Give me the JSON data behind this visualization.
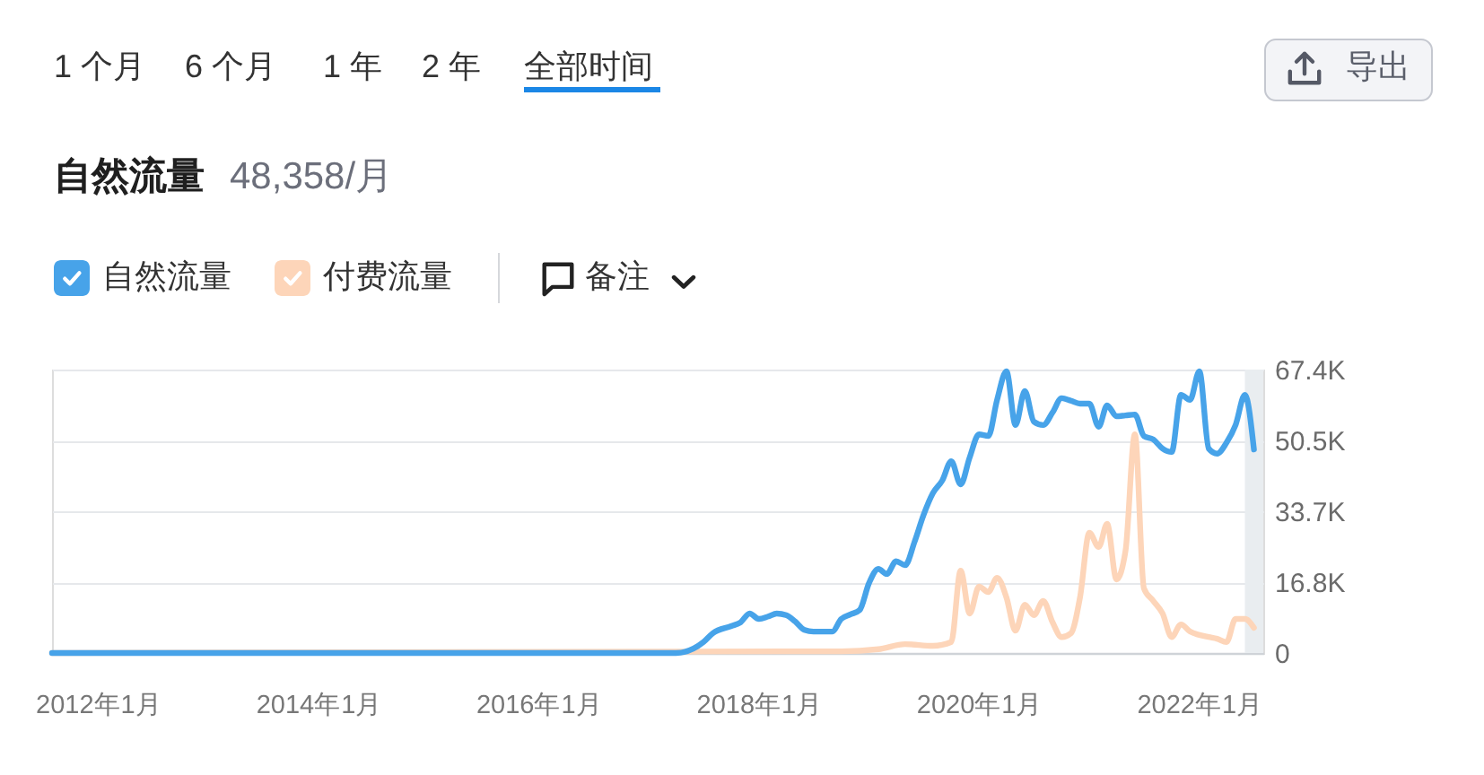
{
  "chart_data": {
    "type": "line",
    "title": "自然流量",
    "subtitle": "48,358/月",
    "annotations": [
      "1 个月",
      "6 个月",
      "1 年",
      "2 年",
      "全部时间",
      "导出",
      "备注"
    ],
    "xlim": [
      "2011-08",
      "2022-08"
    ],
    "xticks": [
      {
        "value": "2012-01",
        "label": "2012年1月"
      },
      {
        "value": "2014-01",
        "label": "2014年1月"
      },
      {
        "value": "2016-01",
        "label": "2016年1月"
      },
      {
        "value": "2018-01",
        "label": "2018年1月"
      },
      {
        "value": "2020-01",
        "label": "2020年1月"
      },
      {
        "value": "2022-01",
        "label": "2022年1月"
      }
    ],
    "ylim": [
      0,
      67400
    ],
    "yticks": [
      0,
      {
        "value": 16850,
        "label": "16.8K"
      },
      {
        "value": 33700,
        "label": "33.7K"
      },
      {
        "value": 50550,
        "label": "50.5K"
      },
      {
        "value": 67400,
        "label": "67.4K"
      }
    ],
    "grid": "y",
    "legend": "top left",
    "bands": [
      {
        "axis": "x",
        "from": "2022-06",
        "to": "2022-08",
        "color": "#e9edf0"
      }
    ],
    "series": [
      {
        "name": "自然流量",
        "color": "#47a3e9",
        "x": [
          "2011-08",
          "2017-04",
          "2017-07",
          "2017-08",
          "2017-10",
          "2017-11",
          "2017-12",
          "2018-01",
          "2018-02",
          "2018-03",
          "2018-04",
          "2018-05",
          "2018-06",
          "2018-07",
          "2018-08",
          "2018-09",
          "2018-10",
          "2018-11",
          "2018-12",
          "2019-01",
          "2019-02",
          "2019-03",
          "2019-04",
          "2019-05",
          "2019-06",
          "2019-07",
          "2019-08",
          "2019-09",
          "2019-10",
          "2019-11",
          "2019-12",
          "2020-01",
          "2020-02",
          "2020-03",
          "2020-04",
          "2020-05",
          "2020-06",
          "2020-07",
          "2020-08",
          "2020-09",
          "2020-10",
          "2020-11",
          "2020-12",
          "2021-01",
          "2021-02",
          "2021-03",
          "2021-04",
          "2021-05",
          "2021-06",
          "2021-07",
          "2021-08",
          "2021-09",
          "2021-10",
          "2021-11",
          "2021-12",
          "2022-01",
          "2022-02",
          "2022-03",
          "2022-04",
          "2022-05",
          "2022-06",
          "2022-07"
        ],
        "values": [
          0,
          0,
          2600,
          4700,
          6400,
          7300,
          9400,
          8100,
          8700,
          9400,
          9000,
          7500,
          5500,
          5100,
          5100,
          5100,
          8100,
          9200,
          10200,
          16600,
          20000,
          18800,
          21800,
          20900,
          26400,
          32800,
          38000,
          41000,
          45600,
          40100,
          46500,
          52000,
          51600,
          60200,
          67000,
          54200,
          62300,
          55000,
          54200,
          57200,
          60600,
          60000,
          59300,
          59300,
          53800,
          58900,
          56300,
          56500,
          56700,
          51600,
          50800,
          48600,
          47800,
          61400,
          60200,
          67000,
          48600,
          47400,
          50000,
          54200,
          61400,
          48400
        ]
      },
      {
        "name": "付费流量",
        "color": "#fdd5b9",
        "x": [
          "2011-08",
          "2018-04",
          "2018-10",
          "2019-02",
          "2019-05",
          "2019-08",
          "2019-10",
          "2019-11",
          "2019-12",
          "2020-01",
          "2020-02",
          "2020-03",
          "2020-04",
          "2020-05",
          "2020-06",
          "2020-07",
          "2020-08",
          "2020-09",
          "2020-10",
          "2020-11",
          "2020-12",
          "2021-01",
          "2021-02",
          "2021-03",
          "2021-04",
          "2021-05",
          "2021-06",
          "2021-07",
          "2021-08",
          "2021-09",
          "2021-10",
          "2021-11",
          "2021-12",
          "2022-01",
          "2022-02",
          "2022-03",
          "2022-04",
          "2022-05",
          "2022-06",
          "2022-07"
        ],
        "values": [
          0,
          400,
          400,
          900,
          2100,
          1700,
          2600,
          19600,
          9400,
          15800,
          14500,
          17900,
          13200,
          5300,
          11500,
          9000,
          12400,
          7300,
          3800,
          4700,
          13200,
          28600,
          25200,
          30700,
          17500,
          24300,
          52000,
          15400,
          12400,
          9400,
          3800,
          6800,
          5100,
          4300,
          3800,
          3400,
          2600,
          8100,
          8100,
          6000
        ]
      }
    ]
  }
}
